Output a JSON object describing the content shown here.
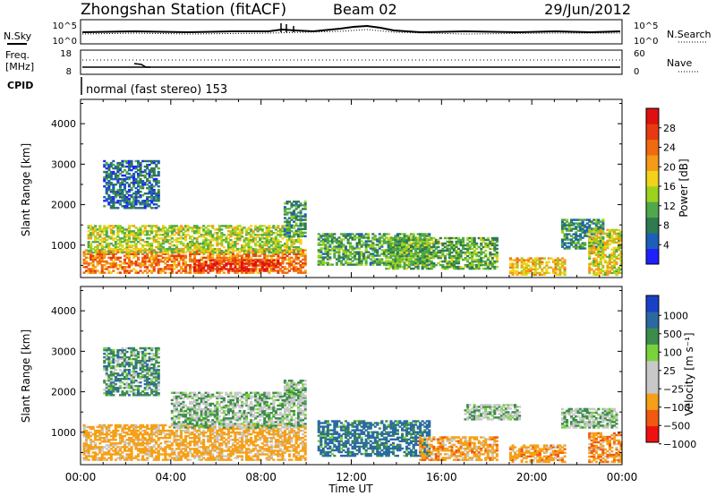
{
  "header": {
    "title": "Zhongshan Station (fitACF)",
    "beam": "Beam 02",
    "date": "29/Jun/2012"
  },
  "noise_panel": {
    "left_label": "N.Sky",
    "right_label": "N.Search",
    "left_ticks": [
      "10^5",
      "10^0"
    ],
    "right_ticks": [
      "10^5",
      "10^0"
    ]
  },
  "freq_panel": {
    "left_label_1": "Freq.",
    "left_label_2": "[MHz]",
    "right_label": "Nave",
    "left_ticks": [
      "18",
      "8"
    ],
    "right_ticks": [
      "60",
      "0"
    ]
  },
  "cpid": {
    "label": "CPID",
    "text": "normal (fast stereo) 153"
  },
  "x_axis": {
    "label": "Time UT",
    "ticks": [
      "00:00",
      "04:00",
      "08:00",
      "12:00",
      "16:00",
      "20:00",
      "00:00"
    ]
  },
  "colors": {
    "power": [
      "#2020ff",
      "#1c5fb8",
      "#2f7a4e",
      "#4fa84a",
      "#9cd21e",
      "#f2d21a",
      "#f59a18",
      "#f06a10",
      "#e83a12",
      "#e01010"
    ],
    "velocity": [
      "#f01010",
      "#f05a10",
      "#f5a018",
      "#c8c8c8",
      "#c8c8c8",
      "#7ad23a",
      "#3c8c4c",
      "#2a6aa0",
      "#1a40c8"
    ]
  },
  "chart_data": [
    {
      "type": "heatmap",
      "panel": "power",
      "ylabel": "Slant Range [km]",
      "xlabel": "Time UT",
      "y_ticks": [
        1000,
        2000,
        3000,
        4000
      ],
      "ylim": [
        200,
        4600
      ],
      "xlim": [
        0,
        24
      ],
      "colorbar": {
        "label": "Power [dB]",
        "ticks": [
          "4",
          "8",
          "12",
          "16",
          "20",
          "24",
          "28"
        ],
        "range": [
          0,
          30
        ]
      },
      "regions": [
        {
          "t0": 0.1,
          "t1": 10.0,
          "r0": 300,
          "r1": 900,
          "value": 22
        },
        {
          "t0": 0.3,
          "t1": 9.8,
          "r0": 800,
          "r1": 1500,
          "value": 14
        },
        {
          "t0": 5.0,
          "t1": 8.8,
          "r0": 350,
          "r1": 650,
          "value": 27
        },
        {
          "t0": 1.0,
          "t1": 3.5,
          "r0": 1900,
          "r1": 3100,
          "value": 6
        },
        {
          "t0": 9.0,
          "t1": 10.0,
          "r0": 1200,
          "r1": 2100,
          "value": 8
        },
        {
          "t0": 10.5,
          "t1": 15.5,
          "r0": 500,
          "r1": 1300,
          "value": 10
        },
        {
          "t0": 13.5,
          "t1": 18.5,
          "r0": 400,
          "r1": 1200,
          "value": 11
        },
        {
          "t0": 19.0,
          "t1": 21.5,
          "r0": 250,
          "r1": 700,
          "value": 18
        },
        {
          "t0": 21.3,
          "t1": 23.2,
          "r0": 900,
          "r1": 1650,
          "value": 8
        },
        {
          "t0": 22.5,
          "t1": 24.0,
          "r0": 250,
          "r1": 1400,
          "value": 16
        }
      ]
    },
    {
      "type": "heatmap",
      "panel": "velocity",
      "ylabel": "Slant Range [km]",
      "xlabel": "Time UT",
      "y_ticks": [
        1000,
        2000,
        3000,
        4000
      ],
      "ylim": [
        200,
        4600
      ],
      "xlim": [
        0,
        24
      ],
      "colorbar": {
        "label": "Velocity [m s⁻¹]",
        "ticks": [
          "1000",
          "500",
          "100",
          "25",
          "−25",
          "−100",
          "−500",
          "−1000"
        ]
      },
      "regions": [
        {
          "t0": 0.1,
          "t1": 10.0,
          "r0": 300,
          "r1": 1200,
          "value": -250
        },
        {
          "t0": 1.0,
          "t1": 3.5,
          "r0": 1900,
          "r1": 3100,
          "value": 60
        },
        {
          "t0": 4.0,
          "t1": 10.0,
          "r0": 1100,
          "r1": 2000,
          "value": 0
        },
        {
          "t0": 9.0,
          "t1": 10.0,
          "r0": 1700,
          "r1": 2300,
          "value": 0
        },
        {
          "t0": 10.5,
          "t1": 15.5,
          "r0": 400,
          "r1": 1300,
          "value": 200
        },
        {
          "t0": 15.0,
          "t1": 18.5,
          "r0": 300,
          "r1": 900,
          "value": -300
        },
        {
          "t0": 17.0,
          "t1": 19.5,
          "r0": 1300,
          "r1": 1700,
          "value": 0
        },
        {
          "t0": 19.0,
          "t1": 21.5,
          "r0": 250,
          "r1": 700,
          "value": -300
        },
        {
          "t0": 21.3,
          "t1": 23.8,
          "r0": 1100,
          "r1": 1600,
          "value": 0
        },
        {
          "t0": 22.5,
          "t1": 24.0,
          "r0": 250,
          "r1": 1000,
          "value": -400
        }
      ]
    }
  ]
}
